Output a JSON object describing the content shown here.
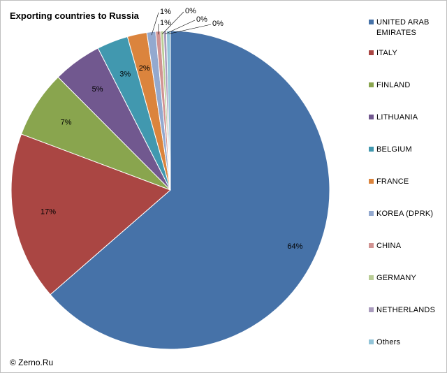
{
  "title": "Exporting countries to Russia",
  "copyright": "© Zerno.Ru",
  "chart_data": {
    "type": "pie",
    "title": "Exporting countries to Russia",
    "legend_position": "right",
    "categories": [
      "UNITED ARAB EMIRATES",
      "ITALY",
      "FINLAND",
      "LITHUANIA",
      "BELGIUM",
      "FRANCE",
      "KOREA (DPRK)",
      "CHINA",
      "GERMANY",
      "NETHERLANDS",
      "Others"
    ],
    "values": [
      64.3,
      17.3,
      6.9,
      5.0,
      3.2,
      2.0,
      0.9,
      0.5,
      0.3,
      0.3,
      0.4
    ],
    "data_labels": [
      "64%",
      "17%",
      "7%",
      "5%",
      "3%",
      "2%",
      "1%",
      "1%",
      "0%",
      "0%",
      "0%"
    ],
    "colors": [
      "#4672a8",
      "#aa4643",
      "#89a54e",
      "#71588f",
      "#4198af",
      "#db843d",
      "#93a9cf",
      "#d19392",
      "#b9cd96",
      "#a99bbd",
      "#92c4d8"
    ]
  }
}
